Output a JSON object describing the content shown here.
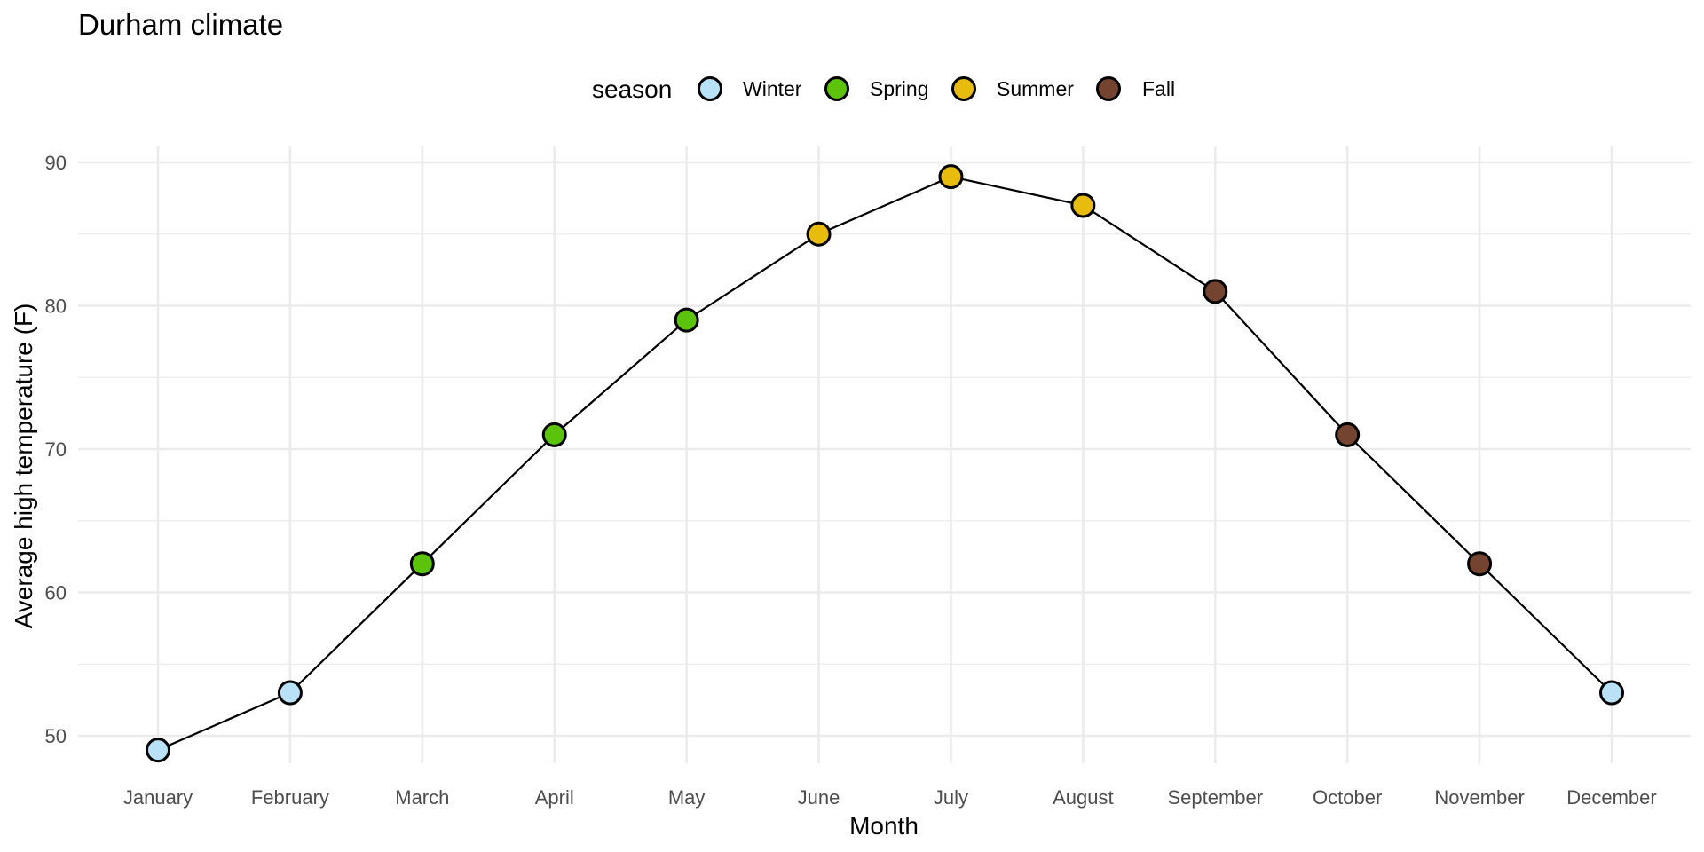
{
  "chart_data": {
    "type": "line",
    "title": "Durham climate",
    "xlabel": "Month",
    "ylabel": "Average high temperature (F)",
    "categories": [
      "January",
      "February",
      "March",
      "April",
      "May",
      "June",
      "July",
      "August",
      "September",
      "October",
      "November",
      "December"
    ],
    "values": [
      49,
      53,
      62,
      71,
      79,
      85,
      89,
      87,
      81,
      71,
      62,
      53
    ],
    "season": [
      "Winter",
      "Winter",
      "Spring",
      "Spring",
      "Spring",
      "Summer",
      "Summer",
      "Summer",
      "Fall",
      "Fall",
      "Fall",
      "Winter"
    ],
    "ylim": [
      48,
      91
    ],
    "yticks": [
      50,
      60,
      70,
      80,
      90
    ],
    "grid": true,
    "legend": {
      "title": "season",
      "placement": "top",
      "items": [
        {
          "label": "Winter",
          "color": "#B9E2F9"
        },
        {
          "label": "Spring",
          "color": "#5CC30B"
        },
        {
          "label": "Summer",
          "color": "#E7BC0D"
        },
        {
          "label": "Fall",
          "color": "#744431"
        }
      ]
    },
    "line_color": "#000000"
  }
}
